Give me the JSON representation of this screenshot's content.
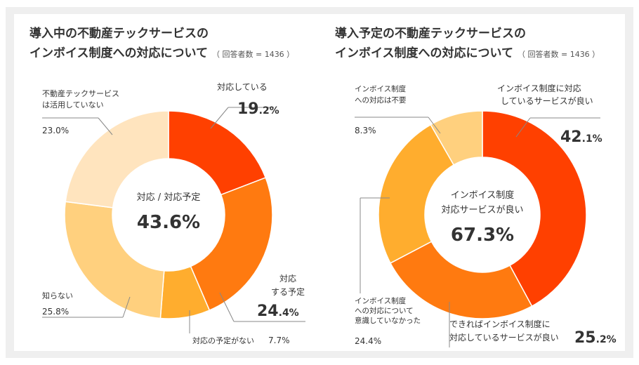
{
  "charts": [
    {
      "title_line1": "導入中の不動産テックサービスの",
      "title_line2": "インボイス制度への対応について",
      "note": "（ 回答者数 = 1436 ）",
      "center_label": "対応 / 対応予定",
      "center_value": "43.6%",
      "labels": [
        {
          "lines": [
            "対応している"
          ],
          "value_int": "19",
          "value_dec": ".2%"
        },
        {
          "lines": [
            "対応",
            "する予定"
          ],
          "value_int": "24",
          "value_dec": ".4%"
        },
        {
          "lines": [
            "対応の予定がない"
          ],
          "value_text": "7.7%"
        },
        {
          "lines": [
            "知らない"
          ],
          "value_text": "25.8%"
        },
        {
          "lines": [
            "不動産テックサービス",
            "は活用していない"
          ],
          "value_text": "23.0%"
        }
      ]
    },
    {
      "title_line1": "導入予定の不動産テックサービスの",
      "title_line2": "インボイス制度への対応について",
      "note": "（ 回答者数 = 1436 ）",
      "center_label_1": "インボイス制度",
      "center_label_2": "対応サービスが良い",
      "center_value": "67.3%",
      "labels": [
        {
          "lines": [
            "インボイス制度に対応",
            "しているサービスが良い"
          ],
          "value_int": "42",
          "value_dec": ".1%"
        },
        {
          "lines": [
            "できればインボイス制度に",
            "対応しているサービスが良い"
          ],
          "value_int": "25",
          "value_dec": ".2%"
        },
        {
          "lines": [
            "インボイス制度",
            "への対応について",
            "意識していなかった"
          ],
          "value_text": "24.4%"
        },
        {
          "lines": [
            "インボイス制度",
            "への対応は不要"
          ],
          "value_text": "8.3%"
        }
      ]
    }
  ],
  "chart_data": [
    {
      "type": "pie",
      "title": "導入中の不動産テックサービスのインボイス制度への対応について",
      "categories": [
        "対応している",
        "対応する予定",
        "対応の予定がない",
        "知らない",
        "不動産テックサービスは活用していない"
      ],
      "values": [
        19.2,
        24.4,
        7.7,
        25.8,
        23.0
      ],
      "colors": [
        "#FF4000",
        "#FF7A10",
        "#FFAD2E",
        "#FFD07E",
        "#FFE4BE"
      ],
      "donut": true
    },
    {
      "type": "pie",
      "title": "導入予定の不動産テックサービスのインボイス制度への対応について",
      "categories": [
        "インボイス制度に対応しているサービスが良い",
        "できればインボイス制度に対応しているサービスが良い",
        "インボイス制度への対応について意識していなかった",
        "インボイス制度への対応は不要"
      ],
      "values": [
        42.1,
        25.2,
        24.4,
        8.3
      ],
      "colors": [
        "#FF4000",
        "#FF7A10",
        "#FFAD2E",
        "#FFD07E"
      ],
      "donut": true
    }
  ]
}
